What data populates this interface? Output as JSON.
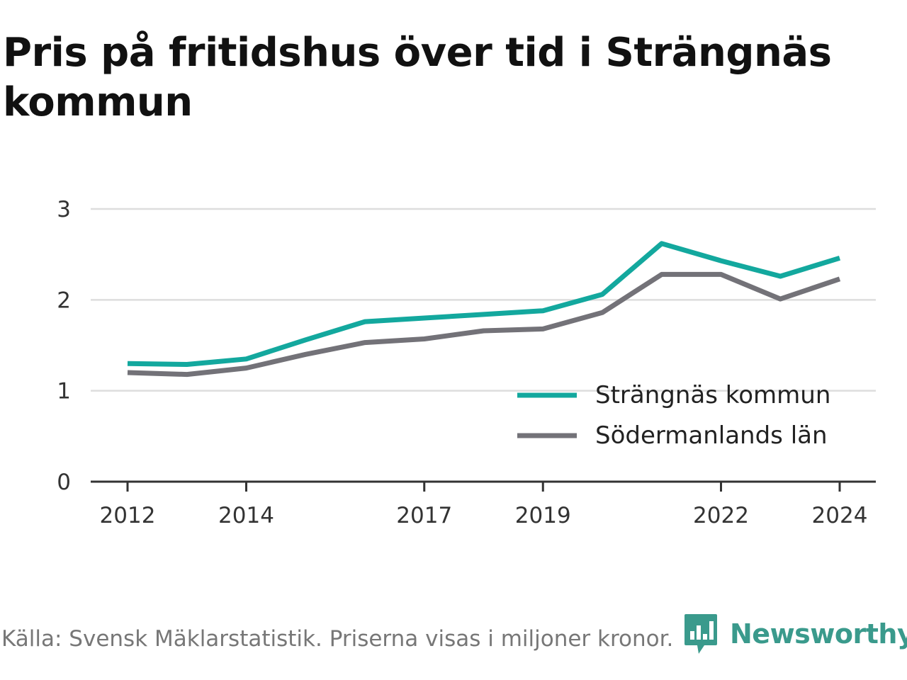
{
  "chart_data": {
    "type": "line",
    "title": "Pris på fritidshus över tid i Strängnäs kommun",
    "xlabel": "",
    "ylabel": "",
    "x": [
      2012,
      2013,
      2014,
      2015,
      2016,
      2017,
      2018,
      2019,
      2020,
      2021,
      2022,
      2023,
      2024
    ],
    "x_ticks": [
      "2012",
      "2014",
      "2017",
      "2019",
      "2022",
      "2024"
    ],
    "y_ticks": [
      "0",
      "1",
      "2",
      "3"
    ],
    "ylim": [
      0,
      3
    ],
    "xlim": [
      2012,
      2024
    ],
    "grid": true,
    "legend_position": "bottom-right",
    "series": [
      {
        "name": "Strängnäs kommun",
        "color": "#13a89e",
        "values": [
          1.3,
          1.29,
          1.35,
          1.56,
          1.76,
          1.8,
          1.84,
          1.88,
          2.06,
          2.62,
          2.43,
          2.26,
          2.46
        ]
      },
      {
        "name": "Södermanlands län",
        "color": "#737278",
        "values": [
          1.2,
          1.18,
          1.25,
          1.4,
          1.53,
          1.57,
          1.66,
          1.68,
          1.86,
          2.28,
          2.28,
          2.01,
          2.23
        ]
      }
    ]
  },
  "footer": {
    "source": "Källa: Svensk Mäklarstatistik. Priserna visas i miljoner kronor.",
    "brand": "Newsworthy",
    "brand_icon": "newsworthy-logo-icon",
    "brand_color": "#3a9a8c"
  }
}
